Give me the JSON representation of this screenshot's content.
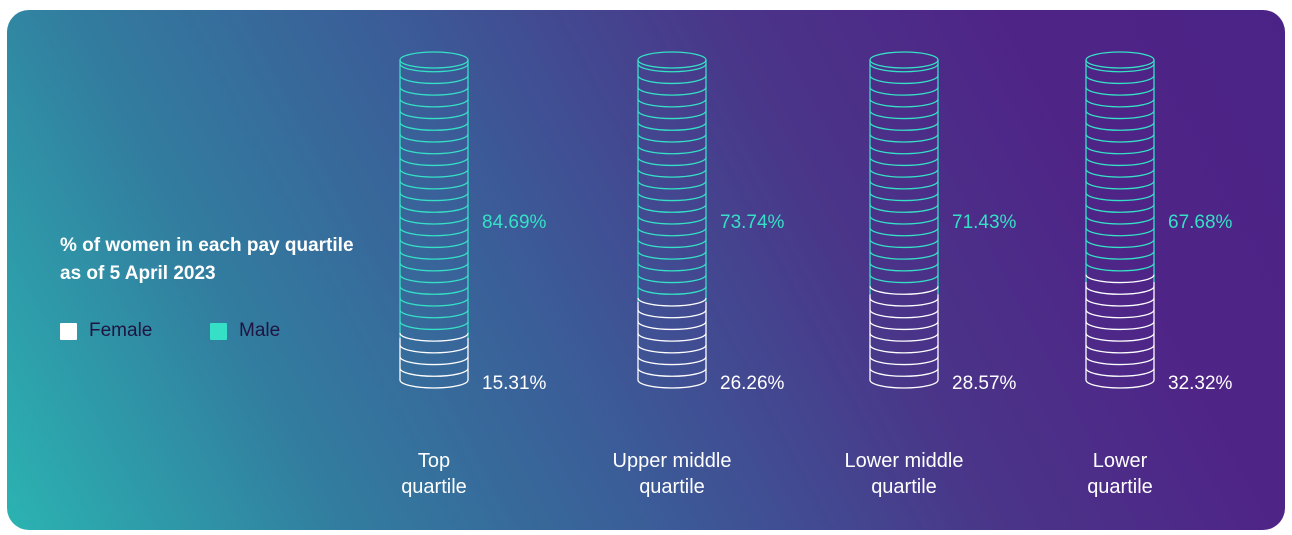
{
  "title": "% of women in each pay quartile as of 5 April 2023",
  "legend": [
    {
      "label": "Female",
      "color": "#ffffff"
    },
    {
      "label": "Male",
      "color": "#35e0c6"
    }
  ],
  "chart_data": {
    "type": "bar",
    "title": "% of women in each pay quartile as of 5 April 2023",
    "categories": [
      "Top quartile",
      "Upper middle quartile",
      "Lower middle quartile",
      "Lower quartile"
    ],
    "category_labels": [
      [
        "Top",
        "quartile"
      ],
      [
        "Upper middle",
        "quartile"
      ],
      [
        "Lower middle",
        "quartile"
      ],
      [
        "Lower",
        "quartile"
      ]
    ],
    "stacked": true,
    "series": [
      {
        "name": "Female",
        "values": [
          15.31,
          26.26,
          28.57,
          32.32
        ],
        "labels": [
          "15.31%",
          "26.26%",
          "28.57%",
          "32.32%"
        ],
        "color": "#ffffff"
      },
      {
        "name": "Male",
        "values": [
          84.69,
          73.74,
          71.43,
          67.68
        ],
        "labels": [
          "84.69%",
          "73.74%",
          "71.43%",
          "67.68%"
        ],
        "color": "#35e0c6"
      }
    ],
    "ylim": [
      0,
      100
    ],
    "legend_position": "left",
    "grid": false
  }
}
